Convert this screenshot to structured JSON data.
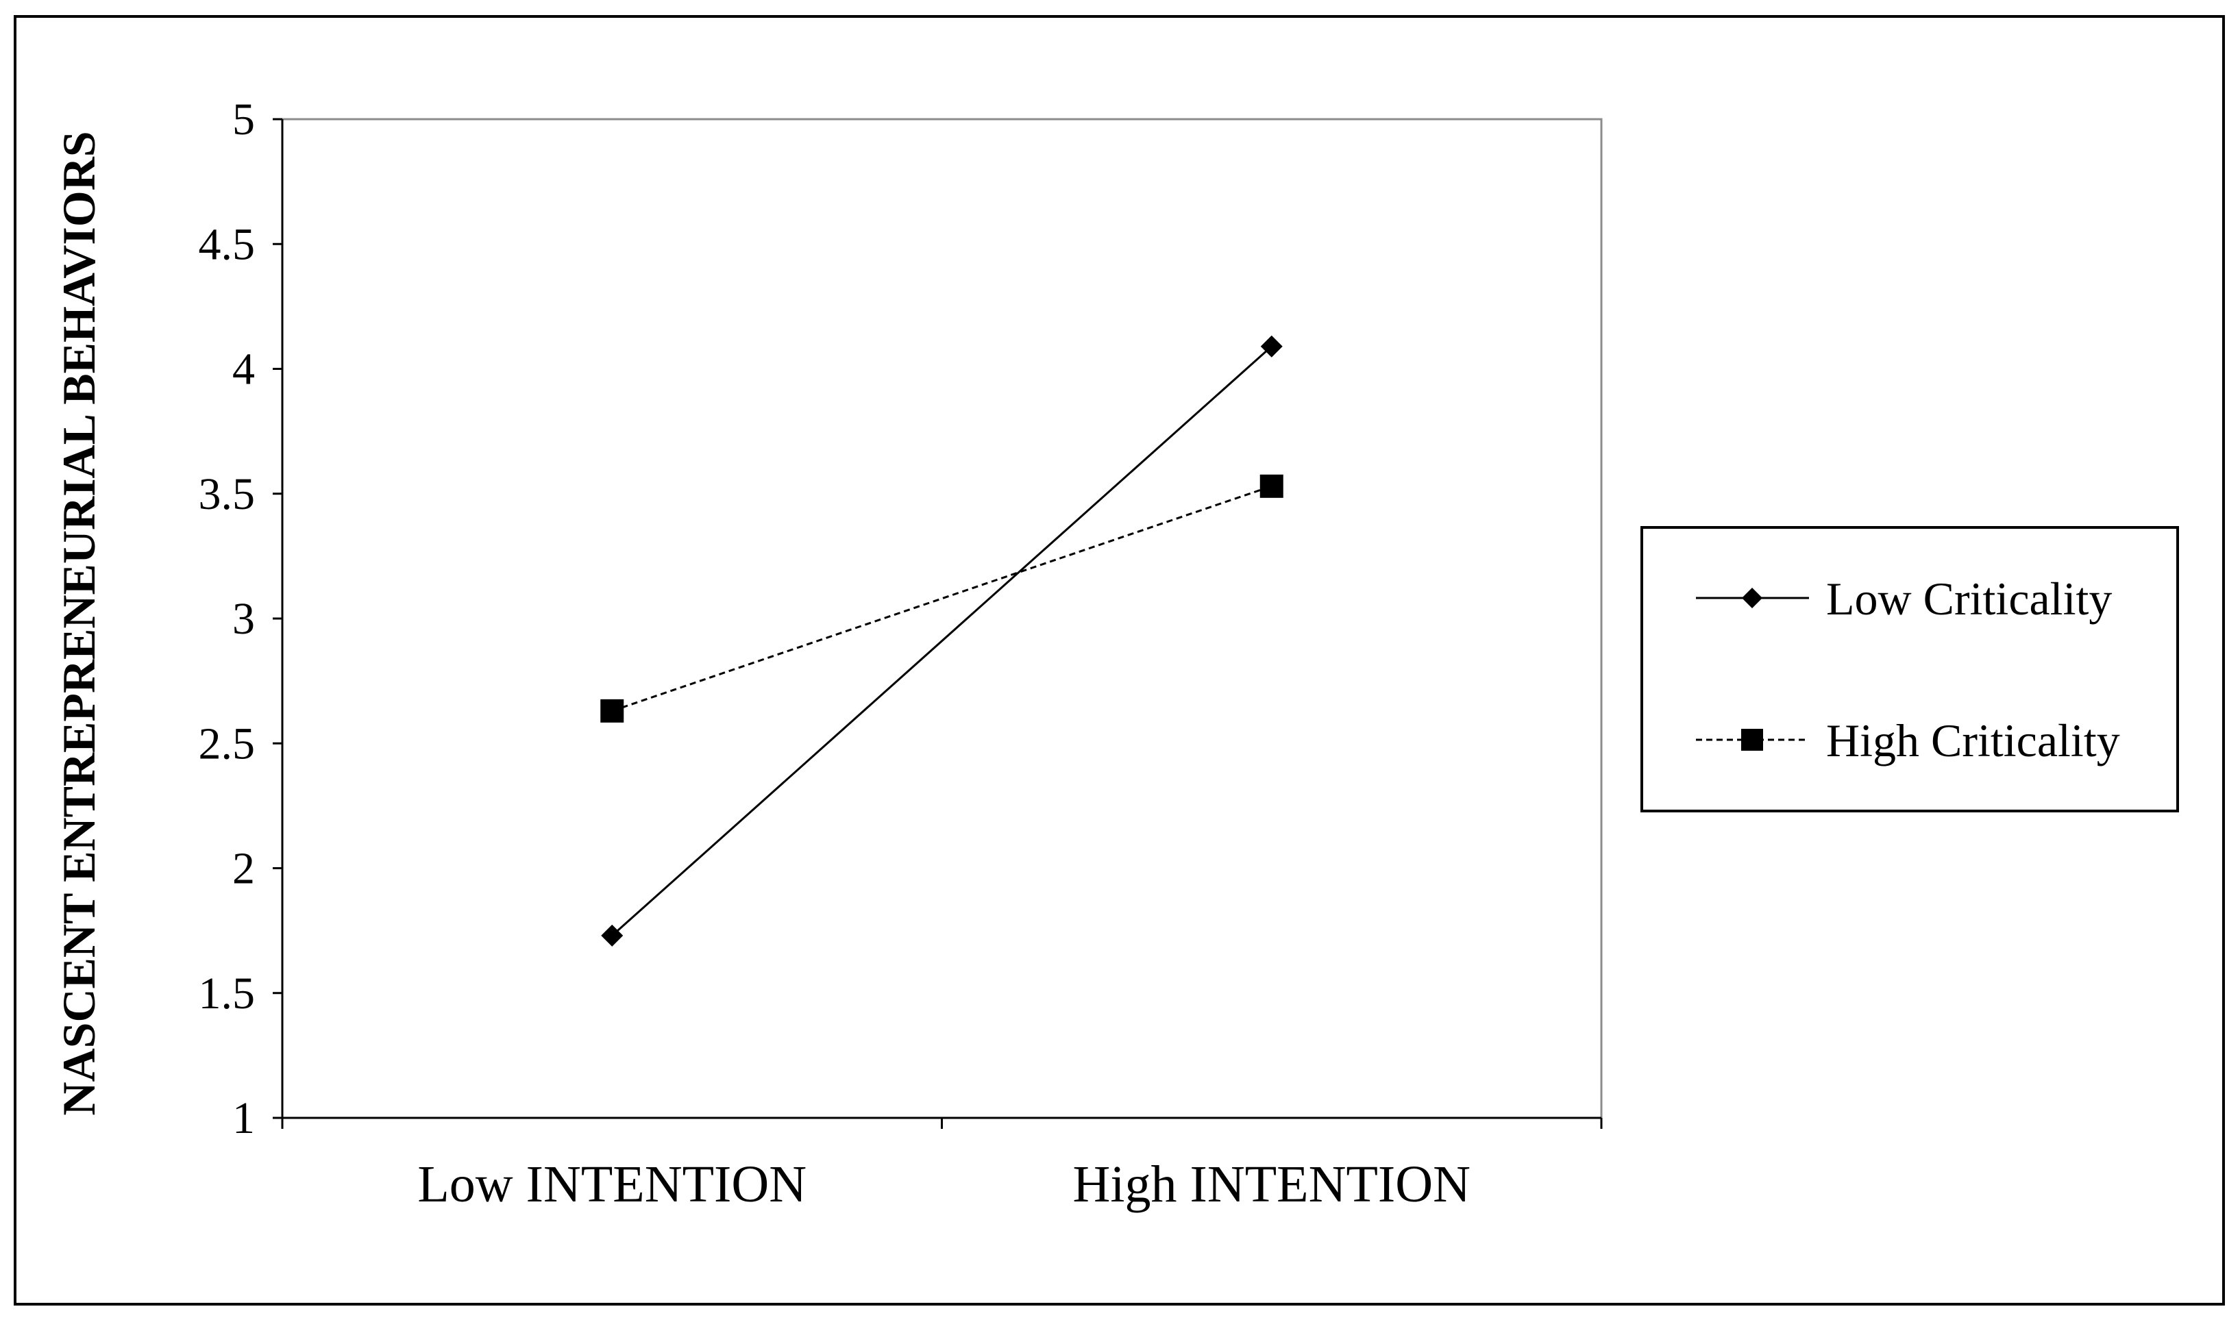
{
  "chart_data": {
    "type": "line",
    "title": "",
    "xlabel": "",
    "ylabel": "NASCENT ENTREPRENEURIAL BEHAVIORS",
    "ylim": [
      1,
      5
    ],
    "yticks": [
      "1",
      "1.5",
      "2",
      "2.5",
      "3",
      "3.5",
      "4",
      "4.5",
      "5"
    ],
    "categories": [
      "Low INTENTION",
      "High INTENTION"
    ],
    "series": [
      {
        "name": "Low Criticality",
        "values": [
          1.73,
          4.09
        ],
        "marker": "diamond",
        "line": "solid"
      },
      {
        "name": "High Criticality",
        "values": [
          2.63,
          3.53
        ],
        "marker": "square",
        "line": "dashed"
      }
    ],
    "grid": false,
    "legend": "right"
  }
}
